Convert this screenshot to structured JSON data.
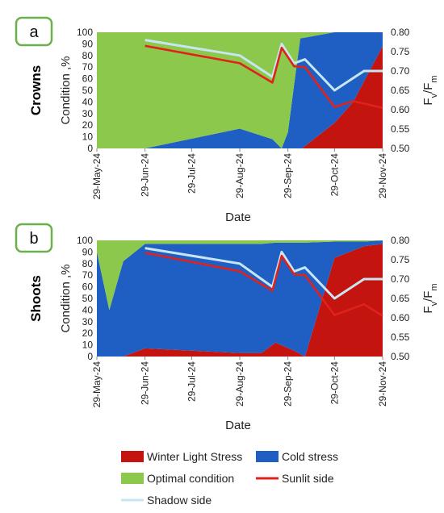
{
  "colors": {
    "optimal": "#8cc84b",
    "cold": "#1f5fc4",
    "winter": "#c41410",
    "sunlit": "#e0221b",
    "shadow": "#c7e6f2",
    "panel_border": "#6ab04c"
  },
  "x_axis": {
    "ticks": [
      "2024-05-29",
      "2024-06-29",
      "2024-07-29",
      "2024-08-29",
      "2024-09-29",
      "2024-10-29",
      "2024-11-29"
    ],
    "tick_labels": [
      "29-May-24",
      "29-Jun-24",
      "29-Jul-24",
      "29-Aug-24",
      "29-Sep-24",
      "29-Oct-24",
      "29-Nov-24"
    ],
    "xlim": [
      "2024-05-29",
      "2024-11-29"
    ]
  },
  "legend": {
    "winter": "Winter Light Stress",
    "cold": "Cold stress",
    "optimal": "Optimal condition",
    "sunlit": "Sunlit side",
    "shadow": "Shadow side"
  },
  "chart_data": [
    {
      "type": "area",
      "panel_label": "a",
      "row_label": "Crowns",
      "xlabel": "Date",
      "ylabel": "Condition ,%",
      "ylabel_right": "Fv/Fm",
      "ylim": [
        0,
        100
      ],
      "ylim_right": [
        0.5,
        0.8
      ],
      "y_ticks": [
        0,
        10,
        20,
        30,
        40,
        50,
        60,
        70,
        80,
        90,
        100
      ],
      "y_ticks_right": [
        "0.50",
        "0.55",
        "0.60",
        "0.65",
        "0.70",
        "0.75",
        "0.80"
      ],
      "stacked_series": [
        {
          "key": "winter",
          "name": "Winter Light Stress",
          "points": [
            [
              "2024-05-29",
              0
            ],
            [
              "2024-06-29",
              0
            ],
            [
              "2024-08-29",
              0
            ],
            [
              "2024-09-29",
              0
            ],
            [
              "2024-10-08",
              0
            ],
            [
              "2024-10-29",
              22
            ],
            [
              "2024-11-10",
              40
            ],
            [
              "2024-11-29",
              88
            ]
          ]
        },
        {
          "key": "cold",
          "name": "Cold stress",
          "points": [
            [
              "2024-05-29",
              0
            ],
            [
              "2024-06-29",
              0
            ],
            [
              "2024-08-29",
              17
            ],
            [
              "2024-09-19",
              8
            ],
            [
              "2024-09-25",
              0
            ],
            [
              "2024-09-29",
              14
            ],
            [
              "2024-10-03",
              55
            ],
            [
              "2024-10-07",
              95
            ],
            [
              "2024-10-29",
              94
            ],
            [
              "2024-11-10",
              92
            ],
            [
              "2024-11-29",
              100
            ]
          ]
        },
        {
          "key": "optimal",
          "name": "Optimal condition",
          "points": [
            [
              "2024-05-29",
              100
            ],
            [
              "2024-11-29",
              100
            ]
          ]
        }
      ],
      "line_series": [
        {
          "key": "shadow",
          "name": "Shadow side",
          "points": [
            [
              "2024-06-29",
              0.78
            ],
            [
              "2024-08-29",
              0.74
            ],
            [
              "2024-09-19",
              0.685
            ],
            [
              "2024-09-25",
              0.77
            ],
            [
              "2024-10-03",
              0.72
            ],
            [
              "2024-10-10",
              0.73
            ],
            [
              "2024-10-29",
              0.65
            ],
            [
              "2024-11-17",
              0.7
            ],
            [
              "2024-11-29",
              0.7
            ]
          ]
        },
        {
          "key": "sunlit",
          "name": "Sunlit side",
          "points": [
            [
              "2024-06-29",
              0.765
            ],
            [
              "2024-08-29",
              0.72
            ],
            [
              "2024-09-19",
              0.67
            ],
            [
              "2024-09-25",
              0.76
            ],
            [
              "2024-10-03",
              0.712
            ],
            [
              "2024-10-10",
              0.71
            ],
            [
              "2024-10-29",
              0.607
            ],
            [
              "2024-11-10",
              0.622
            ],
            [
              "2024-11-29",
              0.605
            ]
          ]
        }
      ]
    },
    {
      "type": "area",
      "panel_label": "b",
      "row_label": "Shoots",
      "xlabel": "Date",
      "ylabel": "Condition ,%",
      "ylabel_right": "Fv/Fm",
      "ylim": [
        0,
        100
      ],
      "ylim_right": [
        0.5,
        0.8
      ],
      "y_ticks": [
        0,
        10,
        20,
        30,
        40,
        50,
        60,
        70,
        80,
        90,
        100
      ],
      "y_ticks_right": [
        "0.50",
        "0.55",
        "0.60",
        "0.65",
        "0.70",
        "0.75",
        "0.80"
      ],
      "stacked_series": [
        {
          "key": "winter",
          "name": "Winter Light Stress",
          "points": [
            [
              "2024-05-29",
              0
            ],
            [
              "2024-06-06",
              0
            ],
            [
              "2024-06-15",
              0
            ],
            [
              "2024-06-29",
              7
            ],
            [
              "2024-08-29",
              3
            ],
            [
              "2024-09-12",
              3
            ],
            [
              "2024-09-21",
              12
            ],
            [
              "2024-10-03",
              5
            ],
            [
              "2024-10-10",
              0
            ],
            [
              "2024-10-29",
              85
            ],
            [
              "2024-11-17",
              95
            ],
            [
              "2024-11-29",
              97
            ]
          ]
        },
        {
          "key": "cold",
          "name": "Cold stress",
          "points": [
            [
              "2024-05-29",
              90
            ],
            [
              "2024-06-06",
              40
            ],
            [
              "2024-06-15",
              82
            ],
            [
              "2024-06-29",
              90
            ],
            [
              "2024-08-29",
              94
            ],
            [
              "2024-09-12",
              94
            ],
            [
              "2024-09-21",
              86
            ],
            [
              "2024-10-03",
              93
            ],
            [
              "2024-10-10",
              98
            ],
            [
              "2024-10-29",
              14
            ],
            [
              "2024-11-17",
              4
            ],
            [
              "2024-11-29",
              3
            ]
          ]
        },
        {
          "key": "optimal",
          "name": "Optimal condition",
          "points": [
            [
              "2024-05-29",
              100
            ],
            [
              "2024-11-29",
              100
            ]
          ]
        }
      ],
      "line_series": [
        {
          "key": "shadow",
          "name": "Shadow side",
          "points": [
            [
              "2024-06-29",
              0.78
            ],
            [
              "2024-08-29",
              0.74
            ],
            [
              "2024-09-19",
              0.68
            ],
            [
              "2024-09-25",
              0.77
            ],
            [
              "2024-10-03",
              0.72
            ],
            [
              "2024-10-10",
              0.73
            ],
            [
              "2024-10-29",
              0.65
            ],
            [
              "2024-11-17",
              0.7
            ],
            [
              "2024-11-29",
              0.7
            ]
          ]
        },
        {
          "key": "sunlit",
          "name": "Sunlit side",
          "points": [
            [
              "2024-06-29",
              0.768
            ],
            [
              "2024-08-29",
              0.72
            ],
            [
              "2024-09-19",
              0.67
            ],
            [
              "2024-09-25",
              0.76
            ],
            [
              "2024-10-03",
              0.712
            ],
            [
              "2024-10-10",
              0.71
            ],
            [
              "2024-10-29",
              0.607
            ],
            [
              "2024-11-17",
              0.635
            ],
            [
              "2024-11-29",
              0.605
            ]
          ]
        }
      ]
    }
  ]
}
